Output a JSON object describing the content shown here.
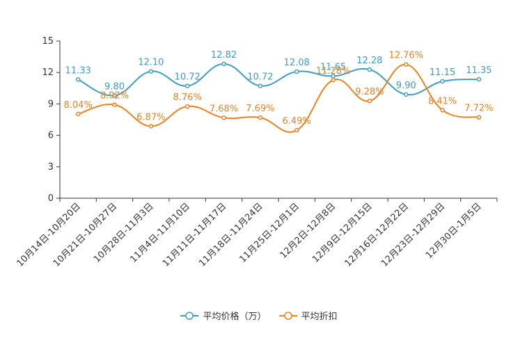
{
  "chart_data": {
    "type": "line",
    "categories": [
      "10月14日-10月20日",
      "10月21日-10月27日",
      "10月28日-11月3日",
      "11月4日-11月10日",
      "11月11日-11月17日",
      "11月18日-11月24日",
      "11月25日-12月1日",
      "12月2日-12月8日",
      "12月9日-12月15日",
      "12月16日-12月22日",
      "12月23日-12月29日",
      "12月30日-1月5日"
    ],
    "series": [
      {
        "name": "平均价格（万）",
        "color": "#3a9dcb",
        "values": [
          11.33,
          9.8,
          12.1,
          10.72,
          12.82,
          10.72,
          12.08,
          11.65,
          12.28,
          9.9,
          11.15,
          11.35
        ],
        "labels": [
          "11.33",
          "9.80",
          "12.10",
          "10.72",
          "12.82",
          "10.72",
          "12.08",
          "11.65",
          "12.28",
          "9.90",
          "11.15",
          "11.35"
        ]
      },
      {
        "name": "平均折扣",
        "color": "#f0801e",
        "values": [
          8.04,
          8.92,
          6.87,
          8.76,
          7.68,
          7.69,
          6.49,
          11.28,
          9.28,
          12.76,
          8.41,
          7.72
        ],
        "labels": [
          "8.04%",
          "8.92%",
          "6.87%",
          "8.76%",
          "7.68%",
          "7.69%",
          "6.49%",
          "11.28%",
          "9.28%",
          "12.76%",
          "8.41%",
          "7.72%"
        ]
      }
    ],
    "yticks": [
      "0",
      "3",
      "6",
      "9",
      "12",
      "15"
    ],
    "ylim": [
      0,
      15
    ],
    "title": "",
    "xlabel": "",
    "ylabel": "",
    "legend_position": "bottom-center"
  }
}
